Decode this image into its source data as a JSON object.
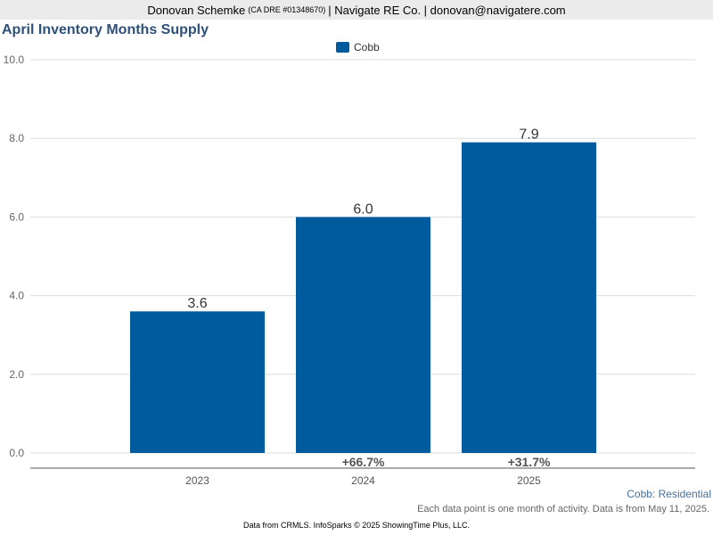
{
  "header": {
    "agent_name": "Donovan Schemke",
    "license": "(CA DRE #01348670)",
    "company_segment": "| Navigate RE Co. | donovan@navigatere.com"
  },
  "legend": {
    "label": "Cobb"
  },
  "colors": {
    "bar": "#005a9e",
    "grid": "#dddddd",
    "axis": "#555555"
  },
  "chart_data": {
    "type": "bar",
    "title": "April Inventory Months Supply",
    "categories": [
      "2023",
      "2024",
      "2025"
    ],
    "series": [
      {
        "name": "Cobb",
        "values": [
          3.6,
          6.0,
          7.9
        ]
      }
    ],
    "value_labels": [
      "3.6",
      "6.0",
      "7.9"
    ],
    "change_labels": [
      "",
      "+66.7%",
      "+31.7%"
    ],
    "ylim": [
      0,
      10
    ],
    "yticks": [
      "0.0",
      "2.0",
      "4.0",
      "6.0",
      "8.0",
      "10.0"
    ],
    "xlabel": "",
    "ylabel": "",
    "grid": true,
    "legend_position": "top-center"
  },
  "footer": {
    "source_label": "Cobb: Residential",
    "note": "Each data point is one month of activity. Data is from May 11, 2025.",
    "credit": "Data from CRMLS. InfoSparks © 2025 ShowingTime Plus, LLC."
  }
}
